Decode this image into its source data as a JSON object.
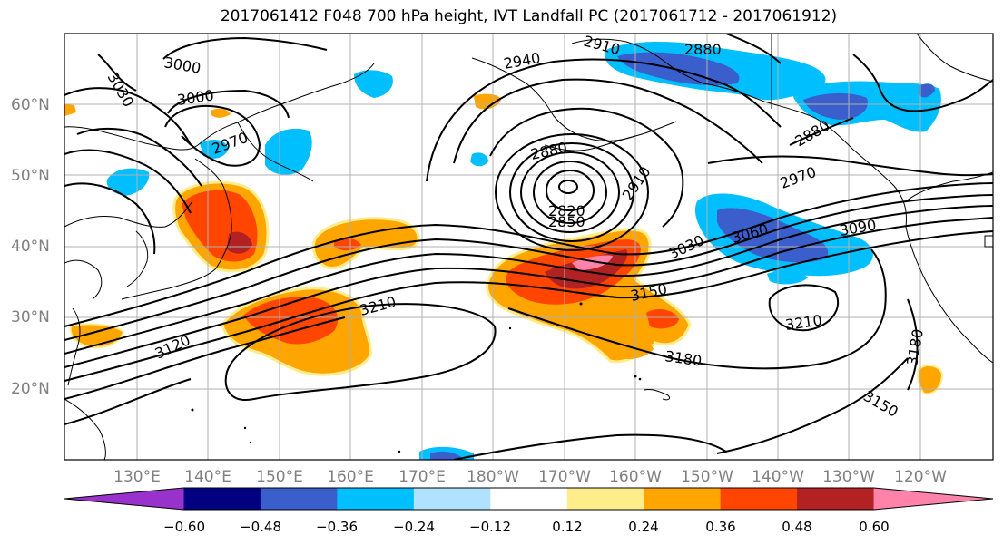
{
  "title": "2017061412 F048 700 hPa height, IVT Landfall PC (2017061712 - 2017061912)",
  "lat_labels": [
    "60°N",
    "50°N",
    "40°N",
    "30°N",
    "20°N"
  ],
  "lon_labels": [
    "130°E",
    "140°E",
    "150°E",
    "160°E",
    "170°E",
    "180°W",
    "170°W",
    "160°W",
    "150°W",
    "140°W",
    "130°W",
    "120°W"
  ],
  "colorbar": {
    "ticks": [
      "−0.60",
      "−0.48",
      "−0.36",
      "−0.24",
      "−0.12",
      "0.12",
      "0.24",
      "0.36",
      "0.48",
      "0.60"
    ],
    "colors": [
      "#9932cc",
      "#000080",
      "#3a5fcd",
      "#00bfff",
      "#b0e2ff",
      "#ffffff",
      "#ffec8b",
      "#ffa500",
      "#ff4500",
      "#b22222",
      "#ff82ab"
    ]
  },
  "contour_labels": {
    "c3000a": "3000",
    "c3000b": "3000",
    "c3030": "3030",
    "c2970a": "2970",
    "c2940": "2940",
    "c2910a": "2910",
    "c2880a": "2880",
    "c2880b": "2880",
    "c2820": "2820",
    "c2850": "2850",
    "c2910b": "2910",
    "c2970b": "2970",
    "c2880c": "2880",
    "c3030b": "3030",
    "c3060": "3060",
    "c3090": "3090",
    "c3150a": "3150",
    "c3210a": "3210",
    "c3210b": "3210",
    "c3120": "3120",
    "c3180a": "3180",
    "c3180b": "3180",
    "c3150b": "3150"
  },
  "colors": {
    "positive_core": "#ff4500",
    "negative_core": "#3a5fcd"
  }
}
